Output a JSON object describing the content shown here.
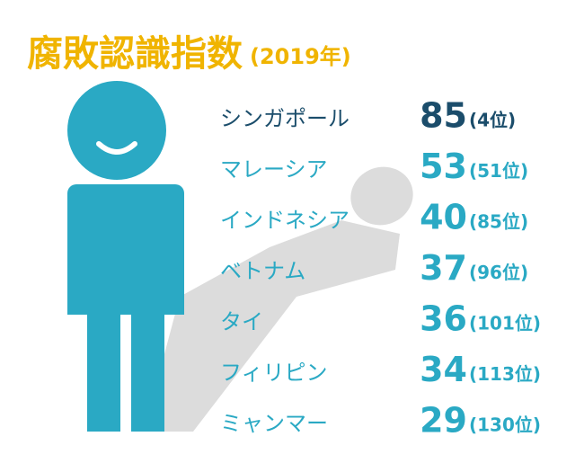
{
  "title": "腐敗認識指数",
  "subtitle": "(2019年)",
  "rows": [
    {
      "country": "シンガポール",
      "score": 85,
      "rank": "(4位)"
    },
    {
      "country": "マレーシア",
      "score": 53,
      "rank": "(51位)"
    },
    {
      "country": "インドネシア",
      "score": 40,
      "rank": "(85位)"
    },
    {
      "country": "ベトナム",
      "score": 37,
      "rank": "(96位)"
    },
    {
      "country": "タイ",
      "score": 36,
      "rank": "(101位)"
    },
    {
      "country": "フィリピン",
      "score": 34,
      "rank": "(113位)"
    },
    {
      "country": "ミャンマー",
      "score": 29,
      "rank": "(130位)"
    }
  ]
}
